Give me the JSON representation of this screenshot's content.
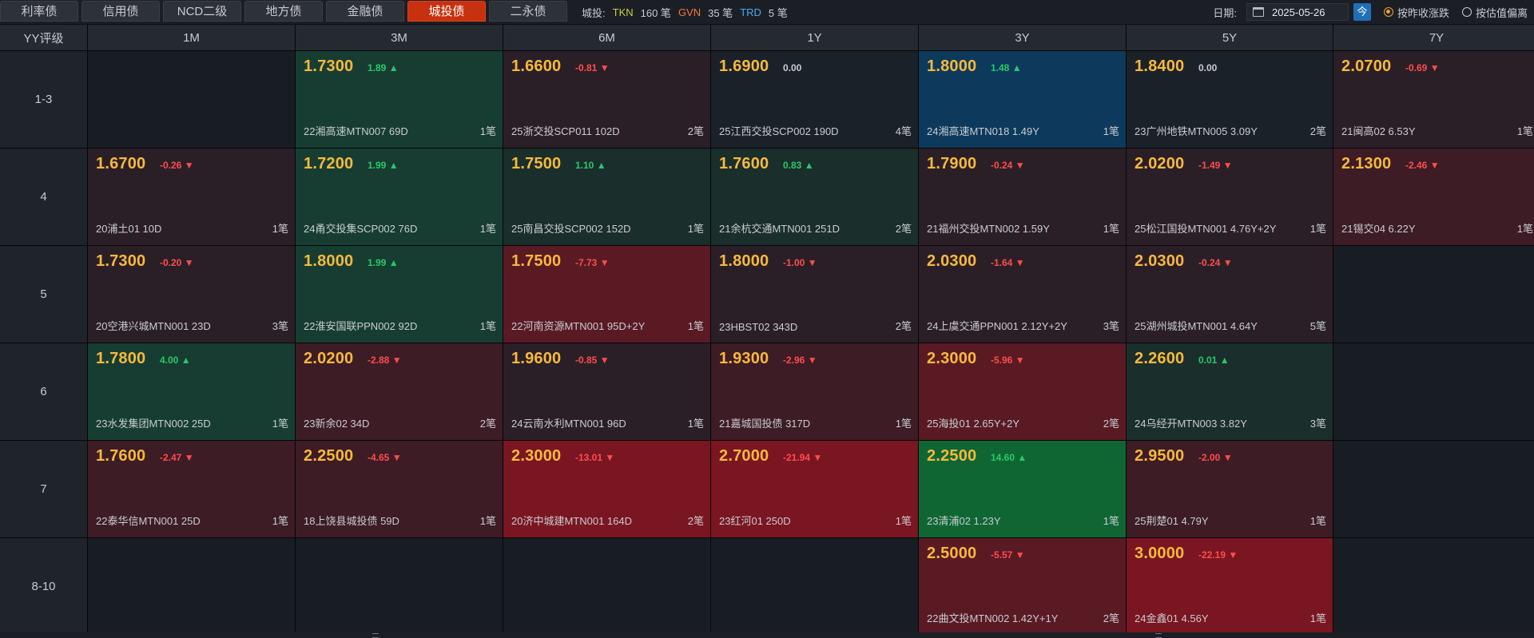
{
  "tabs": [
    {
      "label": "利率债",
      "active": false
    },
    {
      "label": "信用债",
      "active": false
    },
    {
      "label": "NCD二级",
      "active": false
    },
    {
      "label": "地方债",
      "active": false
    },
    {
      "label": "金融债",
      "active": false
    },
    {
      "label": "城投债",
      "active": true
    },
    {
      "label": "二永债",
      "active": false
    }
  ],
  "summary": {
    "category": "城投:",
    "tkn_label": "TKN",
    "tkn_value": "160 笔",
    "gvn_label": "GVN",
    "gvn_value": "35 笔",
    "trd_label": "TRD",
    "trd_value": "5 笔",
    "colors": {
      "tkn": "#c9d23a",
      "gvn": "#f0783c",
      "trd": "#4aa9f0"
    }
  },
  "tools": {
    "date_label": "日期:",
    "date_value": "2025-05-26",
    "today_label": "今",
    "radio_prev_close": "按昨收涨跌",
    "radio_valuation": "按估值偏离",
    "selected_radio": "按昨收涨跌"
  },
  "grid": {
    "corner": "YY评级",
    "columns": [
      "1M",
      "3M",
      "6M",
      "1Y",
      "3Y",
      "5Y",
      "7Y"
    ],
    "rows": [
      {
        "label": "1-3",
        "cells": [
          null,
          {
            "yield": "1.7300",
            "change": "1.89",
            "dir": "up",
            "tone": "g2",
            "bond": "22湘高速MTN007 69D",
            "count": "1笔"
          },
          {
            "yield": "1.6600",
            "change": "-0.81",
            "dir": "dn",
            "tone": "r1",
            "bond": "25浙交投SCP011 102D",
            "count": "2笔"
          },
          {
            "yield": "1.6900",
            "change": "0.00",
            "dir": "flat",
            "tone": "neutral",
            "bond": "25江西交投SCP002 190D",
            "count": "4笔"
          },
          {
            "yield": "1.8000",
            "change": "1.48",
            "dir": "up",
            "tone": "blue",
            "bond": "24湘高速MTN018 1.49Y",
            "count": "1笔"
          },
          {
            "yield": "1.8400",
            "change": "0.00",
            "dir": "flat",
            "tone": "neutral",
            "bond": "23广州地铁MTN005 3.09Y",
            "count": "2笔"
          },
          {
            "yield": "2.0700",
            "change": "-0.69",
            "dir": "dn",
            "tone": "r1",
            "bond": "21闽高02 6.53Y",
            "count": "1笔"
          }
        ]
      },
      {
        "label": "4",
        "cells": [
          {
            "yield": "1.6700",
            "change": "-0.26",
            "dir": "dn",
            "tone": "r1",
            "bond": "20浦土01 10D",
            "count": "1笔"
          },
          {
            "yield": "1.7200",
            "change": "1.99",
            "dir": "up",
            "tone": "g2",
            "bond": "24甬交投集SCP002 76D",
            "count": "1笔"
          },
          {
            "yield": "1.7500",
            "change": "1.10",
            "dir": "up",
            "tone": "g1",
            "bond": "25南昌交投SCP002 152D",
            "count": "1笔"
          },
          {
            "yield": "1.7600",
            "change": "0.83",
            "dir": "up",
            "tone": "g1",
            "bond": "21余杭交通MTN001 251D",
            "count": "2笔"
          },
          {
            "yield": "1.7900",
            "change": "-0.24",
            "dir": "dn",
            "tone": "r1",
            "bond": "21福州交投MTN002 1.59Y",
            "count": "1笔"
          },
          {
            "yield": "2.0200",
            "change": "-1.49",
            "dir": "dn",
            "tone": "r1",
            "bond": "25松江国投MTN001 4.76Y+2Y",
            "count": "1笔"
          },
          {
            "yield": "2.1300",
            "change": "-2.46",
            "dir": "dn",
            "tone": "r2",
            "bond": "21锡交04 6.22Y",
            "count": "1笔"
          }
        ]
      },
      {
        "label": "5",
        "cells": [
          {
            "yield": "1.7300",
            "change": "-0.20",
            "dir": "dn",
            "tone": "r1",
            "bond": "20空港兴城MTN001 23D",
            "count": "3笔"
          },
          {
            "yield": "1.8000",
            "change": "1.99",
            "dir": "up",
            "tone": "g2",
            "bond": "22淮安国联PPN002 92D",
            "count": "1笔"
          },
          {
            "yield": "1.7500",
            "change": "-7.73",
            "dir": "dn",
            "tone": "r3",
            "bond": "22河南资源MTN001 95D+2Y",
            "count": "1笔"
          },
          {
            "yield": "1.8000",
            "change": "-1.00",
            "dir": "dn",
            "tone": "r1",
            "bond": "23HBST02 343D",
            "count": "2笔"
          },
          {
            "yield": "2.0300",
            "change": "-1.64",
            "dir": "dn",
            "tone": "r1",
            "bond": "24上虞交通PPN001 2.12Y+2Y",
            "count": "3笔"
          },
          {
            "yield": "2.0300",
            "change": "-0.24",
            "dir": "dn",
            "tone": "r1",
            "bond": "25湖州城投MTN001 4.64Y",
            "count": "5笔"
          },
          null
        ]
      },
      {
        "label": "6",
        "cells": [
          {
            "yield": "1.7800",
            "change": "4.00",
            "dir": "up",
            "tone": "g2",
            "bond": "23水发集团MTN002 25D",
            "count": "1笔"
          },
          {
            "yield": "2.0200",
            "change": "-2.88",
            "dir": "dn",
            "tone": "r2",
            "bond": "23新余02 34D",
            "count": "2笔"
          },
          {
            "yield": "1.9600",
            "change": "-0.85",
            "dir": "dn",
            "tone": "r1",
            "bond": "24云南水利MTN001 96D",
            "count": "1笔"
          },
          {
            "yield": "1.9300",
            "change": "-2.96",
            "dir": "dn",
            "tone": "r2",
            "bond": "21嘉城国投债 317D",
            "count": "1笔"
          },
          {
            "yield": "2.3000",
            "change": "-5.96",
            "dir": "dn",
            "tone": "r3",
            "bond": "25海投01 2.65Y+2Y",
            "count": "2笔"
          },
          {
            "yield": "2.2600",
            "change": "0.01",
            "dir": "up",
            "tone": "g1",
            "bond": "24乌经开MTN003 3.82Y",
            "count": "3笔"
          },
          null
        ]
      },
      {
        "label": "7",
        "cells": [
          {
            "yield": "1.7600",
            "change": "-2.47",
            "dir": "dn",
            "tone": "r2",
            "bond": "22泰华信MTN001 25D",
            "count": "1笔"
          },
          {
            "yield": "2.2500",
            "change": "-4.65",
            "dir": "dn",
            "tone": "r2",
            "bond": "18上饶县城投债 59D",
            "count": "1笔"
          },
          {
            "yield": "2.3000",
            "change": "-13.01",
            "dir": "dn",
            "tone": "r4",
            "bond": "20济中城建MTN001 164D",
            "count": "2笔"
          },
          {
            "yield": "2.7000",
            "change": "-21.94",
            "dir": "dn",
            "tone": "r4",
            "bond": "23红河01 250D",
            "count": "1笔"
          },
          {
            "yield": "2.2500",
            "change": "14.60",
            "dir": "up",
            "tone": "g3",
            "bond": "23清浦02 1.23Y",
            "count": "1笔"
          },
          {
            "yield": "2.9500",
            "change": "-2.00",
            "dir": "dn",
            "tone": "r2",
            "bond": "25荆楚01 4.79Y",
            "count": "1笔"
          },
          null
        ]
      },
      {
        "label": "8-10",
        "cells": [
          null,
          null,
          null,
          null,
          {
            "yield": "2.5000",
            "change": "-5.57",
            "dir": "dn",
            "tone": "r3",
            "bond": "22曲文投MTN002 1.42Y+1Y",
            "count": "2笔"
          },
          {
            "yield": "3.0000",
            "change": "-22.19",
            "dir": "dn",
            "tone": "r4",
            "bond": "24金鑫01 4.56Y",
            "count": "1笔"
          },
          null
        ]
      }
    ]
  }
}
